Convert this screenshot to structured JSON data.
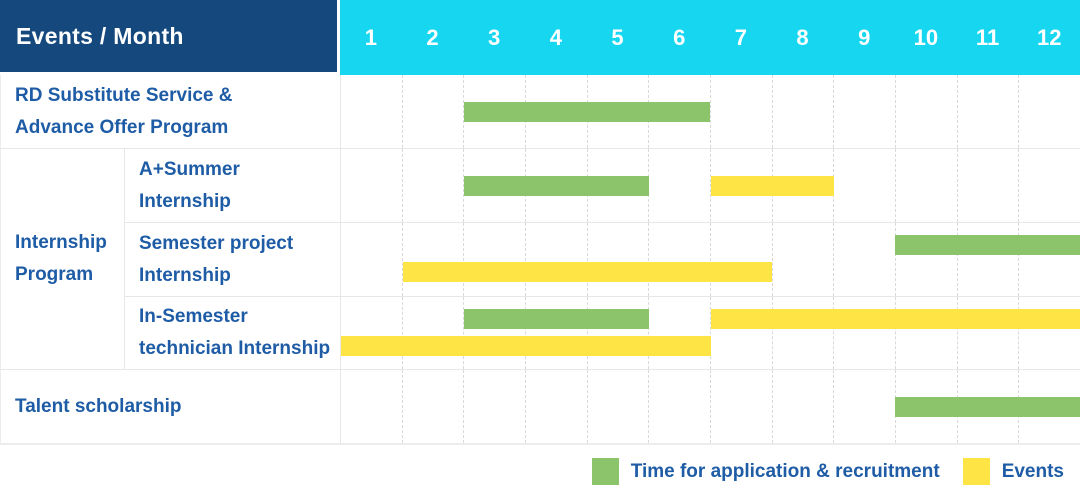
{
  "header": {
    "title": "Events / Month",
    "months": [
      "1",
      "2",
      "3",
      "4",
      "5",
      "6",
      "7",
      "8",
      "9",
      "10",
      "11",
      "12"
    ]
  },
  "legend": {
    "items": [
      {
        "label": "Time for application & recruitment",
        "type": "application"
      },
      {
        "label": "Events",
        "type": "events"
      }
    ]
  },
  "colors": {
    "header_bg": "#15497e",
    "months_bg": "#17d7f0",
    "label_text": "#1e5ca6",
    "application_green": "#8bc46a",
    "events_yellow": "#ffe446",
    "grid_solid": "#e7e7e7",
    "grid_dash": "#d9d9d9"
  },
  "chart_data": {
    "type": "gantt",
    "title": "Events / Month",
    "xlabel": "Month",
    "x_ticks": [
      1,
      2,
      3,
      4,
      5,
      6,
      7,
      8,
      9,
      10,
      11,
      12
    ],
    "x_range": [
      1,
      12
    ],
    "grid": "vertical-dashed",
    "legend_position": "bottom-right",
    "legend": [
      {
        "name": "Time for application & recruitment",
        "color": "#8bc46a"
      },
      {
        "name": "Events",
        "color": "#ffe446"
      }
    ],
    "rows": [
      {
        "group": "",
        "label": "RD Substitute Service & Advance Offer Program",
        "label_lines": [
          "RD Substitute Service &",
          "Advance Offer Program"
        ],
        "bars": [
          {
            "type": "application",
            "start_month": 3,
            "end_month": 6,
            "line": "center"
          }
        ]
      },
      {
        "group": "Internship Program",
        "label": "A+Summer Internship",
        "label_lines": [
          "A+Summer",
          "Internship"
        ],
        "bars": [
          {
            "type": "application",
            "start_month": 3,
            "end_month": 5,
            "line": "center"
          },
          {
            "type": "events",
            "start_month": 7,
            "end_month": 8,
            "line": "center"
          }
        ]
      },
      {
        "group": "Internship Program",
        "label": "Semester project Internship",
        "label_lines": [
          "Semester project",
          "Internship"
        ],
        "bars": [
          {
            "type": "application",
            "start_month": 10,
            "end_month": 12,
            "line": "top"
          },
          {
            "type": "events",
            "start_month": 2,
            "end_month": 7,
            "line": "bottom"
          }
        ]
      },
      {
        "group": "Internship Program",
        "label": "In-Semester technician Internship",
        "label_lines": [
          "In-Semester",
          "technician Internship"
        ],
        "bars": [
          {
            "type": "application",
            "start_month": 3,
            "end_month": 5,
            "line": "top"
          },
          {
            "type": "events",
            "start_month": 7,
            "end_month": 12,
            "line": "top"
          },
          {
            "type": "events",
            "start_month": 1,
            "end_month": 6,
            "line": "bottom"
          }
        ]
      },
      {
        "group": "",
        "label": "Talent scholarship",
        "label_lines": [
          "Talent scholarship"
        ],
        "bars": [
          {
            "type": "application",
            "start_month": 10,
            "end_month": 12,
            "line": "center"
          }
        ]
      }
    ],
    "group_label_lines": [
      "Internship",
      "Program"
    ]
  }
}
